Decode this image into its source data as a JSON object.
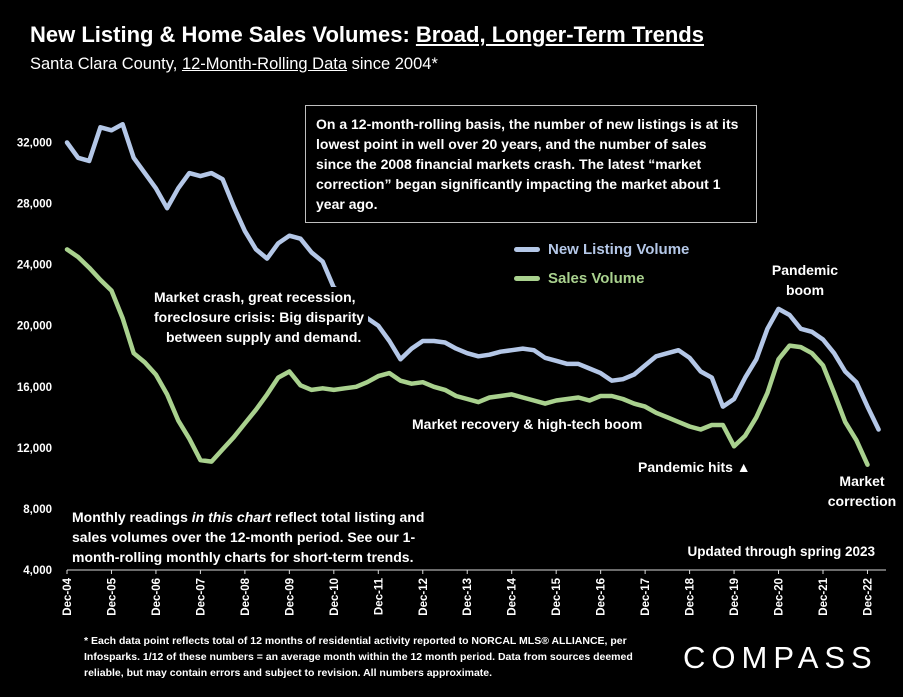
{
  "header": {
    "title_prefix": "New Listing & Home Sales Volumes: ",
    "title_underlined": "Broad, Longer-Term Trends",
    "subtitle_prefix": "Santa Clara County, ",
    "subtitle_underlined": "12-Month-Rolling Data",
    "subtitle_suffix": " since 2004*"
  },
  "callout": "On a 12-month-rolling basis, the number of new listings is at its lowest point in well over 20 years, and the number of sales since the 2008 financial markets crash. The latest “market correction” began significantly impacting the market about 1 year ago.",
  "annotations": {
    "crash_line1": "Market crash,  great recession,",
    "crash_line2": "foreclosure crisis: Big disparity",
    "crash_line3": "between supply and demand.",
    "recovery": "Market recovery & high-tech boom",
    "pandemic_hits": "Pandemic hits ▲",
    "pandemic_boom_line1": "Pandemic",
    "pandemic_boom_line2": "boom",
    "correction_line1": "Market",
    "correction_line2": "correction"
  },
  "note_parts": {
    "part1": "Monthly readings ",
    "part2_italic": "in this chart",
    "part3": " reflect total listing and sales volumes over the 12-month period. See our 1-month-rolling monthly charts for short-term trends."
  },
  "updated": "Updated through spring 2023",
  "footnote": "* Each data point reflects total of 12 months of residential activity reported to NORCAL MLS® ALLIANCE, per Infosparks. 1/12 of these numbers = an average month within the 12 month period. Data from sources deemed reliable, but may contain errors and subject to revision. All numbers approximate.",
  "logo": "COMPASS",
  "colors": {
    "listing": "#b4c7e7",
    "sales": "#a9d18e",
    "background": "#000000",
    "text": "#ffffff"
  },
  "chart_data": {
    "type": "line",
    "x_tick_labels": [
      "Dec-04",
      "Dec-05",
      "Dec-06",
      "Dec-07",
      "Dec-08",
      "Dec-09",
      "Dec-10",
      "Dec-11",
      "Dec-12",
      "Dec-13",
      "Dec-14",
      "Dec-15",
      "Dec-16",
      "Dec-17",
      "Dec-18",
      "Dec-19",
      "Dec-20",
      "Dec-21",
      "Dec-22"
    ],
    "y_ticks": [
      4000,
      8000,
      12000,
      16000,
      20000,
      24000,
      28000,
      32000
    ],
    "y_tick_labels": [
      "4,000",
      "8,000",
      "12,000",
      "16,000",
      "20,000",
      "24,000",
      "28,000",
      "32,000"
    ],
    "ylim": [
      4000,
      34000
    ],
    "x_range": [
      "2004-12",
      "2023-05"
    ],
    "legend_position": "center-right",
    "series": [
      {
        "name": "New Listing Volume",
        "color": "#b4c7e7",
        "points": [
          [
            "2004-12",
            32000
          ],
          [
            "2005-03",
            31000
          ],
          [
            "2005-06",
            30800
          ],
          [
            "2005-09",
            33000
          ],
          [
            "2005-12",
            32800
          ],
          [
            "2006-03",
            33200
          ],
          [
            "2006-06",
            31000
          ],
          [
            "2006-09",
            30000
          ],
          [
            "2006-12",
            29000
          ],
          [
            "2007-03",
            27700
          ],
          [
            "2007-06",
            29000
          ],
          [
            "2007-09",
            30000
          ],
          [
            "2007-12",
            29800
          ],
          [
            "2008-03",
            30000
          ],
          [
            "2008-06",
            29600
          ],
          [
            "2008-09",
            27800
          ],
          [
            "2008-12",
            26200
          ],
          [
            "2009-03",
            25000
          ],
          [
            "2009-06",
            24400
          ],
          [
            "2009-09",
            25400
          ],
          [
            "2009-12",
            25900
          ],
          [
            "2010-03",
            25700
          ],
          [
            "2010-06",
            24800
          ],
          [
            "2010-09",
            24200
          ],
          [
            "2010-12",
            22500
          ],
          [
            "2011-03",
            22000
          ],
          [
            "2011-06",
            21200
          ],
          [
            "2011-09",
            20500
          ],
          [
            "2011-12",
            20000
          ],
          [
            "2012-03",
            19000
          ],
          [
            "2012-06",
            17800
          ],
          [
            "2012-09",
            18500
          ],
          [
            "2012-12",
            19000
          ],
          [
            "2013-03",
            19000
          ],
          [
            "2013-06",
            18900
          ],
          [
            "2013-09",
            18500
          ],
          [
            "2013-12",
            18200
          ],
          [
            "2014-03",
            18000
          ],
          [
            "2014-06",
            18100
          ],
          [
            "2014-09",
            18300
          ],
          [
            "2014-12",
            18400
          ],
          [
            "2015-03",
            18500
          ],
          [
            "2015-06",
            18400
          ],
          [
            "2015-09",
            17900
          ],
          [
            "2015-12",
            17700
          ],
          [
            "2016-03",
            17500
          ],
          [
            "2016-06",
            17500
          ],
          [
            "2016-09",
            17200
          ],
          [
            "2016-12",
            16900
          ],
          [
            "2017-03",
            16400
          ],
          [
            "2017-06",
            16500
          ],
          [
            "2017-09",
            16800
          ],
          [
            "2017-12",
            17400
          ],
          [
            "2018-03",
            18000
          ],
          [
            "2018-06",
            18200
          ],
          [
            "2018-09",
            18400
          ],
          [
            "2018-12",
            17900
          ],
          [
            "2019-03",
            17000
          ],
          [
            "2019-06",
            16600
          ],
          [
            "2019-09",
            14700
          ],
          [
            "2019-12",
            15200
          ],
          [
            "2020-03",
            16600
          ],
          [
            "2020-06",
            17800
          ],
          [
            "2020-09",
            19800
          ],
          [
            "2020-12",
            21100
          ],
          [
            "2021-03",
            20700
          ],
          [
            "2021-06",
            19800
          ],
          [
            "2021-09",
            19600
          ],
          [
            "2021-12",
            19100
          ],
          [
            "2022-03",
            18200
          ],
          [
            "2022-06",
            17000
          ],
          [
            "2022-09",
            16300
          ],
          [
            "2022-12",
            14700
          ],
          [
            "2023-03",
            13200
          ]
        ]
      },
      {
        "name": "Sales Volume",
        "color": "#a9d18e",
        "points": [
          [
            "2004-12",
            25000
          ],
          [
            "2005-03",
            24500
          ],
          [
            "2005-06",
            23800
          ],
          [
            "2005-09",
            23000
          ],
          [
            "2005-12",
            22300
          ],
          [
            "2006-03",
            20500
          ],
          [
            "2006-06",
            18200
          ],
          [
            "2006-09",
            17600
          ],
          [
            "2006-12",
            16800
          ],
          [
            "2007-03",
            15500
          ],
          [
            "2007-06",
            13800
          ],
          [
            "2007-09",
            12600
          ],
          [
            "2007-12",
            11200
          ],
          [
            "2008-03",
            11100
          ],
          [
            "2008-06",
            11900
          ],
          [
            "2008-09",
            12700
          ],
          [
            "2008-12",
            13600
          ],
          [
            "2009-03",
            14500
          ],
          [
            "2009-06",
            15500
          ],
          [
            "2009-09",
            16600
          ],
          [
            "2009-12",
            17000
          ],
          [
            "2010-03",
            16100
          ],
          [
            "2010-06",
            15800
          ],
          [
            "2010-09",
            15900
          ],
          [
            "2010-12",
            15800
          ],
          [
            "2011-03",
            15900
          ],
          [
            "2011-06",
            16000
          ],
          [
            "2011-09",
            16300
          ],
          [
            "2011-12",
            16700
          ],
          [
            "2012-03",
            16900
          ],
          [
            "2012-06",
            16400
          ],
          [
            "2012-09",
            16200
          ],
          [
            "2012-12",
            16300
          ],
          [
            "2013-03",
            16000
          ],
          [
            "2013-06",
            15800
          ],
          [
            "2013-09",
            15400
          ],
          [
            "2013-12",
            15200
          ],
          [
            "2014-03",
            15000
          ],
          [
            "2014-06",
            15300
          ],
          [
            "2014-09",
            15400
          ],
          [
            "2014-12",
            15500
          ],
          [
            "2015-03",
            15300
          ],
          [
            "2015-06",
            15100
          ],
          [
            "2015-09",
            14900
          ],
          [
            "2015-12",
            15100
          ],
          [
            "2016-03",
            15200
          ],
          [
            "2016-06",
            15300
          ],
          [
            "2016-09",
            15100
          ],
          [
            "2016-12",
            15400
          ],
          [
            "2017-03",
            15400
          ],
          [
            "2017-06",
            15200
          ],
          [
            "2017-09",
            14900
          ],
          [
            "2017-12",
            14700
          ],
          [
            "2018-03",
            14300
          ],
          [
            "2018-06",
            14000
          ],
          [
            "2018-09",
            13700
          ],
          [
            "2018-12",
            13400
          ],
          [
            "2019-03",
            13200
          ],
          [
            "2019-06",
            13500
          ],
          [
            "2019-09",
            13500
          ],
          [
            "2019-12",
            12100
          ],
          [
            "2020-03",
            12800
          ],
          [
            "2020-06",
            14000
          ],
          [
            "2020-09",
            15600
          ],
          [
            "2020-12",
            17800
          ],
          [
            "2021-03",
            18700
          ],
          [
            "2021-06",
            18600
          ],
          [
            "2021-09",
            18200
          ],
          [
            "2021-12",
            17400
          ],
          [
            "2022-03",
            15600
          ],
          [
            "2022-06",
            13700
          ],
          [
            "2022-09",
            12500
          ],
          [
            "2022-12",
            10900
          ]
        ]
      }
    ]
  }
}
